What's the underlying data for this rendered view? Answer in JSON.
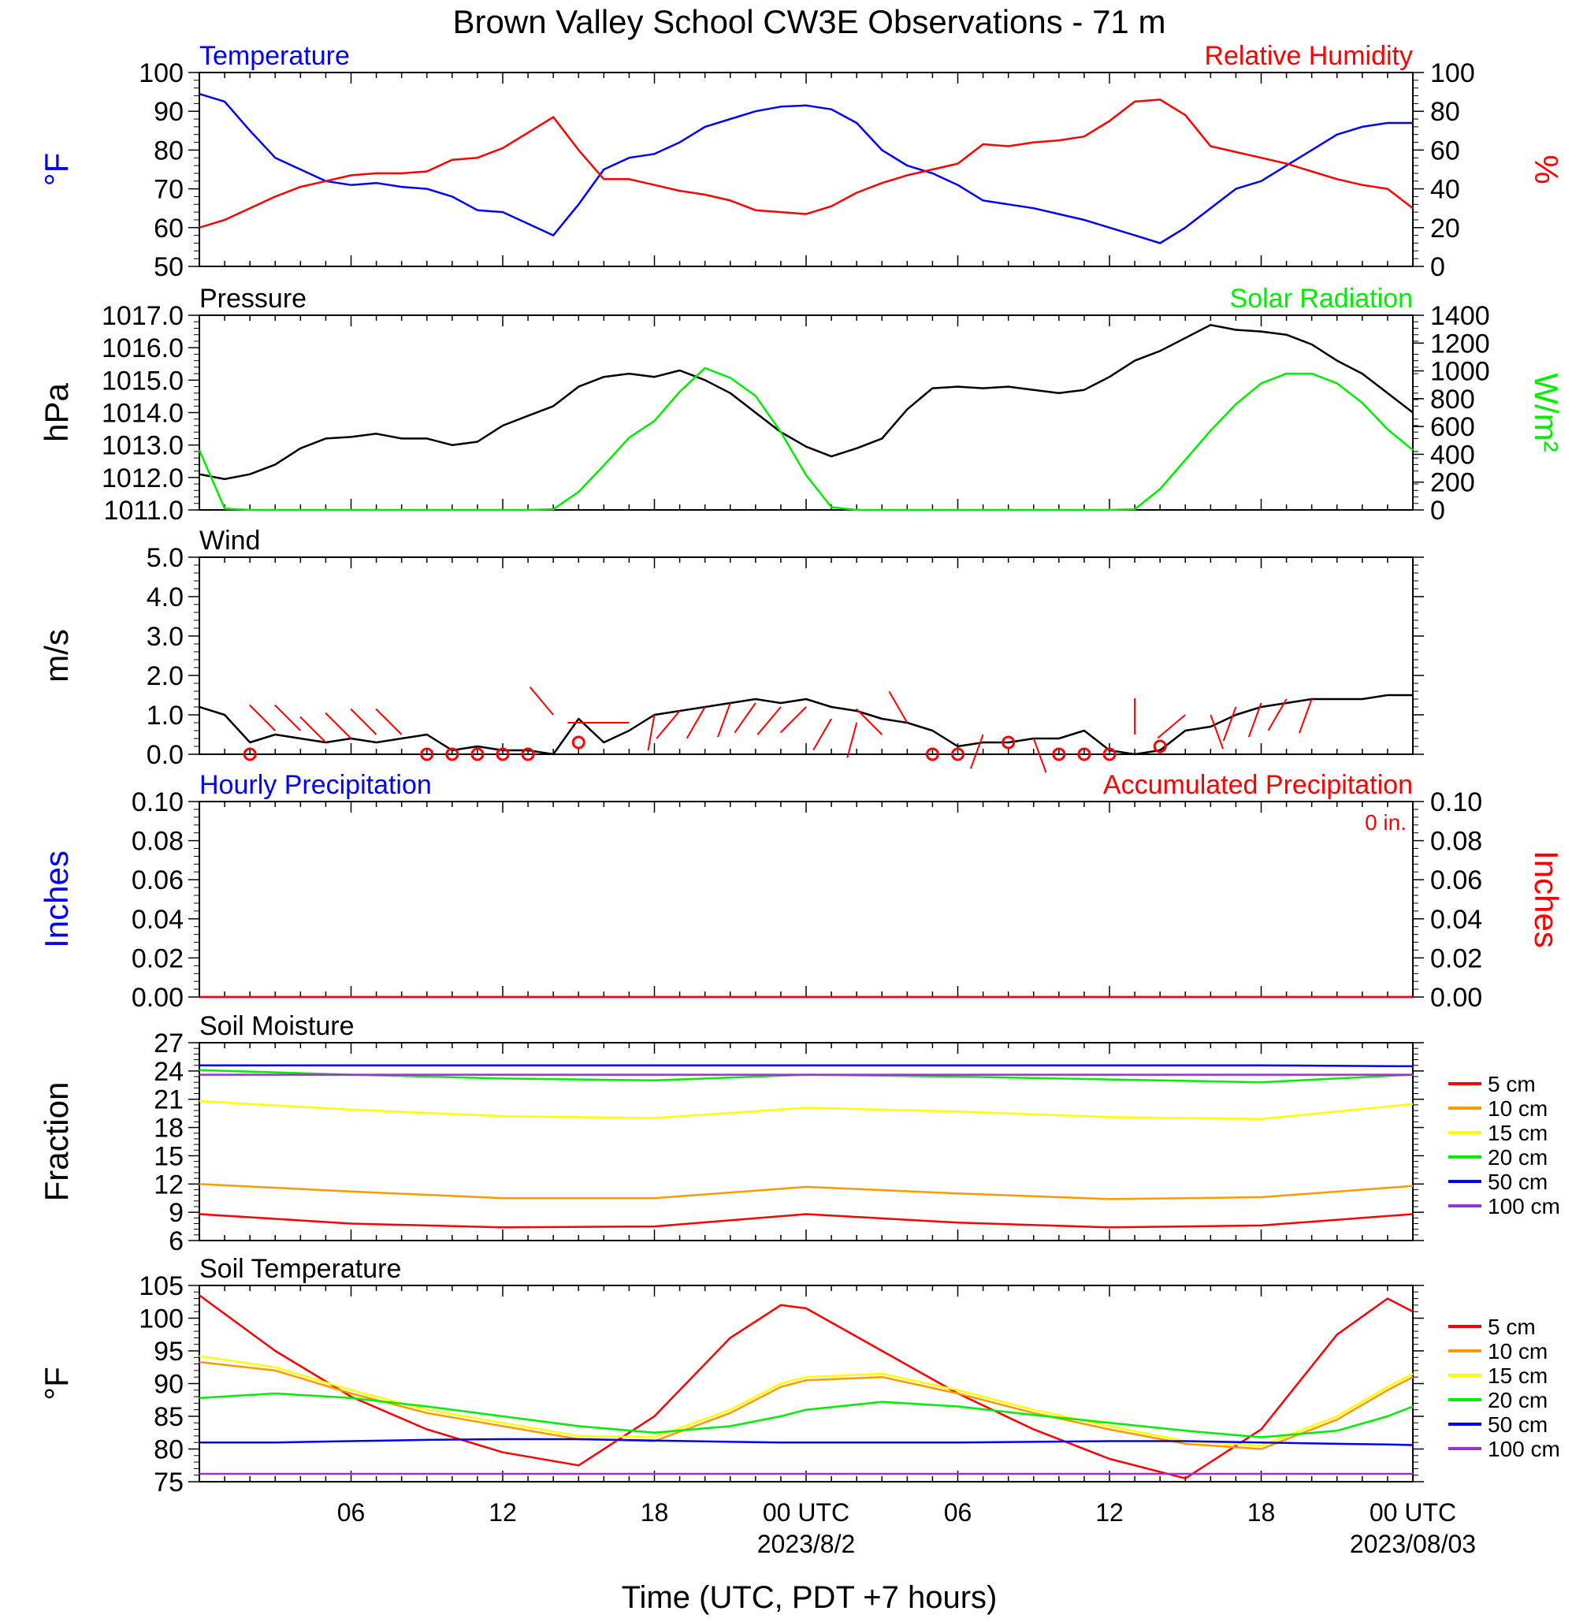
{
  "title": "Brown Valley School CW3E Observations - 71 m",
  "xaxis": {
    "label": "Time (UTC, PDT +7 hours)",
    "ticks": [
      {
        "t": 6,
        "label": "06"
      },
      {
        "t": 12,
        "label": "12"
      },
      {
        "t": 18,
        "label": "18"
      },
      {
        "t": 24,
        "label": "00 UTC"
      },
      {
        "t": 30,
        "label": "06"
      },
      {
        "t": 36,
        "label": "12"
      },
      {
        "t": 42,
        "label": "18"
      },
      {
        "t": 48,
        "label": "00 UTC"
      }
    ],
    "dates": [
      {
        "t": 24,
        "label": "2023/8/2"
      },
      {
        "t": 48,
        "label": "2023/08/03"
      }
    ]
  },
  "legend": {
    "depths": [
      "5 cm",
      "10 cm",
      "15 cm",
      "20 cm",
      "50 cm",
      "100 cm"
    ],
    "colors": [
      "#ff0000",
      "#ff9900",
      "#ffff00",
      "#00ee00",
      "#0000ff",
      "#9933cc"
    ]
  },
  "chart_data": [
    {
      "type": "line",
      "left_title": "Temperature",
      "right_title": "Relative Humidity",
      "ylabel_left": "°F",
      "ylabel_right": "%",
      "ylim_left": [
        50,
        100
      ],
      "ylim_right": [
        0,
        100
      ],
      "yticks_left": [
        "100",
        "90",
        "80",
        "70",
        "60",
        "50"
      ],
      "yticks_right": [
        "100",
        "80",
        "60",
        "40",
        "20",
        "0"
      ],
      "x": [
        0,
        1,
        2,
        3,
        4,
        5,
        6,
        7,
        8,
        9,
        10,
        11,
        12,
        13,
        14,
        15,
        16,
        17,
        18,
        19,
        20,
        21,
        22,
        23,
        24,
        25,
        26,
        27,
        28,
        29,
        30,
        31,
        32,
        33,
        34,
        35,
        36,
        37,
        38,
        39,
        40,
        41,
        42,
        43,
        44,
        45,
        46,
        47,
        48
      ],
      "series": [
        {
          "name": "Temperature",
          "axis": "left",
          "color": "#0000ff",
          "values": [
            94.5,
            92.5,
            85,
            78,
            75,
            72,
            71,
            71.5,
            70.5,
            70,
            68,
            64.5,
            64,
            61,
            58,
            66,
            75,
            78,
            79,
            82,
            86,
            88,
            90,
            91.2,
            91.5,
            90.5,
            87,
            80,
            76,
            74,
            71,
            67,
            66,
            65,
            63.5,
            62,
            60,
            58,
            56,
            60,
            65,
            70,
            72,
            76,
            80,
            84,
            86,
            87,
            87
          ]
        },
        {
          "name": "Relative Humidity",
          "axis": "right",
          "color": "#ff0000",
          "values": [
            20,
            24,
            30,
            36,
            41,
            44,
            47,
            48,
            48,
            49,
            55,
            56,
            61,
            69,
            77,
            60,
            45,
            45,
            42,
            39,
            37,
            34,
            29,
            28,
            27,
            31,
            38,
            43,
            47,
            50,
            53,
            63,
            62,
            64,
            65,
            67,
            75,
            85,
            86,
            78,
            62,
            59,
            56,
            53,
            49,
            45,
            42,
            40,
            30
          ]
        }
      ]
    },
    {
      "type": "line",
      "left_title": "Pressure",
      "right_title": "Solar Radiation",
      "ylabel_left": "hPa",
      "ylabel_right": "W/m²",
      "ylim_left": [
        1011,
        1017
      ],
      "ylim_right": [
        0,
        1400
      ],
      "yticks_left": [
        "1017.0",
        "1016.0",
        "1015.0",
        "1014.0",
        "1013.0",
        "1012.0",
        "1011.0"
      ],
      "yticks_right": [
        "1400",
        "1200",
        "1000",
        "800",
        "600",
        "400",
        "200",
        "0"
      ],
      "x": [
        0,
        1,
        2,
        3,
        4,
        5,
        6,
        7,
        8,
        9,
        10,
        11,
        12,
        13,
        14,
        15,
        16,
        17,
        18,
        19,
        20,
        21,
        22,
        23,
        24,
        25,
        26,
        27,
        28,
        29,
        30,
        31,
        32,
        33,
        34,
        35,
        36,
        37,
        38,
        39,
        40,
        41,
        42,
        43,
        44,
        45,
        46,
        47,
        48
      ],
      "series": [
        {
          "name": "Pressure",
          "axis": "left",
          "color": "#000000",
          "values": [
            1012.1,
            1011.95,
            1012.1,
            1012.4,
            1012.9,
            1013.2,
            1013.25,
            1013.35,
            1013.2,
            1013.2,
            1013.0,
            1013.1,
            1013.6,
            1013.9,
            1014.2,
            1014.8,
            1015.1,
            1015.2,
            1015.1,
            1015.3,
            1015.0,
            1014.6,
            1014.0,
            1013.4,
            1012.95,
            1012.65,
            1012.9,
            1013.2,
            1014.1,
            1014.75,
            1014.8,
            1014.75,
            1014.8,
            1014.7,
            1014.6,
            1014.7,
            1015.1,
            1015.6,
            1015.9,
            1016.3,
            1016.7,
            1016.55,
            1016.5,
            1016.4,
            1016.1,
            1015.6,
            1015.2,
            1014.6,
            1014.0
          ]
        },
        {
          "name": "Solar Radiation",
          "axis": "right",
          "color": "#00ee00",
          "values": [
            430,
            10,
            0,
            0,
            0,
            0,
            0,
            0,
            0,
            0,
            0,
            0,
            0,
            0,
            5,
            130,
            320,
            520,
            640,
            850,
            1020,
            950,
            820,
            560,
            250,
            20,
            0,
            0,
            0,
            0,
            0,
            0,
            0,
            0,
            0,
            0,
            0,
            5,
            150,
            360,
            570,
            760,
            910,
            980,
            980,
            910,
            770,
            580,
            430
          ]
        }
      ]
    },
    {
      "type": "line",
      "left_title": "Wind",
      "ylabel_left": "m/s",
      "ylim_left": [
        0,
        5
      ],
      "yticks_left": [
        "5.0",
        "4.0",
        "3.0",
        "2.0",
        "1.0",
        "0.0"
      ],
      "x": [
        0,
        1,
        2,
        3,
        4,
        5,
        6,
        7,
        8,
        9,
        10,
        11,
        12,
        13,
        14,
        15,
        16,
        17,
        18,
        19,
        20,
        21,
        22,
        23,
        24,
        25,
        26,
        27,
        28,
        29,
        30,
        31,
        32,
        33,
        34,
        35,
        36,
        37,
        38,
        39,
        40,
        41,
        42,
        43,
        44,
        45,
        46,
        47,
        48
      ],
      "series": [
        {
          "name": "Wind speed",
          "axis": "left",
          "color": "#000000",
          "values": [
            1.2,
            1.0,
            0.3,
            0.5,
            0.4,
            0.3,
            0.4,
            0.3,
            0.4,
            0.5,
            0.1,
            0.2,
            0.1,
            0.1,
            0.0,
            0.9,
            0.3,
            0.6,
            1.0,
            1.1,
            1.2,
            1.3,
            1.4,
            1.3,
            1.4,
            1.2,
            1.1,
            0.9,
            0.8,
            0.6,
            0.2,
            0.3,
            0.3,
            0.4,
            0.4,
            0.6,
            0.1,
            0.0,
            0.1,
            0.6,
            0.7,
            1.0,
            1.2,
            1.3,
            1.4,
            1.4,
            1.4,
            1.5,
            1.5
          ]
        }
      ]
    },
    {
      "type": "line",
      "left_title": "Hourly Precipitation",
      "right_title": "Accumulated Precipitation",
      "annotation": "0 in.",
      "ylabel_left": "Inches",
      "ylabel_right": "Inches",
      "ylim_left": [
        0,
        0.1
      ],
      "ylim_right": [
        0,
        0.1
      ],
      "yticks_left": [
        "0.10",
        "0.08",
        "0.06",
        "0.04",
        "0.02",
        "0.00"
      ],
      "yticks_right": [
        "0.10",
        "0.08",
        "0.06",
        "0.04",
        "0.02",
        "0.00"
      ],
      "x": [
        0,
        48
      ],
      "series": [
        {
          "name": "Hourly Precipitation",
          "axis": "left",
          "color": "#0000ff",
          "values": [
            0,
            0
          ]
        },
        {
          "name": "Accumulated Precipitation",
          "axis": "right",
          "color": "#ff0000",
          "values": [
            0,
            0
          ]
        }
      ]
    },
    {
      "type": "line",
      "left_title": "Soil Moisture",
      "ylabel_left": "Fraction",
      "ylim_left": [
        6,
        27
      ],
      "yticks_left": [
        "27",
        "24",
        "21",
        "18",
        "15",
        "12",
        "9",
        "6"
      ],
      "x": [
        0,
        6,
        12,
        18,
        24,
        30,
        36,
        42,
        48
      ],
      "series": [
        {
          "name": "5 cm",
          "axis": "left",
          "color": "#ff0000",
          "values": [
            8.8,
            7.8,
            7.4,
            7.5,
            8.8,
            7.9,
            7.4,
            7.6,
            8.8
          ]
        },
        {
          "name": "10 cm",
          "axis": "left",
          "color": "#ff9900",
          "values": [
            12.0,
            11.2,
            10.5,
            10.5,
            11.7,
            11.0,
            10.4,
            10.6,
            11.8
          ]
        },
        {
          "name": "15 cm",
          "axis": "left",
          "color": "#ffff00",
          "values": [
            20.8,
            19.9,
            19.2,
            19.0,
            20.1,
            19.7,
            19.1,
            18.9,
            20.5
          ]
        },
        {
          "name": "20 cm",
          "axis": "left",
          "color": "#00ee00",
          "values": [
            24.1,
            23.6,
            23.2,
            23.0,
            23.6,
            23.4,
            23.1,
            22.8,
            23.6
          ]
        },
        {
          "name": "50 cm",
          "axis": "left",
          "color": "#0000ff",
          "values": [
            24.6,
            24.6,
            24.6,
            24.6,
            24.6,
            24.6,
            24.6,
            24.6,
            24.5
          ]
        },
        {
          "name": "100 cm",
          "axis": "left",
          "color": "#9933cc",
          "values": [
            23.6,
            23.6,
            23.6,
            23.6,
            23.6,
            23.6,
            23.6,
            23.6,
            23.6
          ]
        }
      ]
    },
    {
      "type": "line",
      "left_title": "Soil Temperature",
      "ylabel_left": "°F",
      "ylim_left": [
        75,
        105
      ],
      "yticks_left": [
        "105",
        "100",
        "95",
        "90",
        "85",
        "80",
        "75"
      ],
      "x": [
        0,
        3,
        6,
        9,
        12,
        15,
        18,
        21,
        23,
        24,
        27,
        30,
        33,
        36,
        39,
        42,
        45,
        47,
        48
      ],
      "series": [
        {
          "name": "5 cm",
          "axis": "left",
          "color": "#ff0000",
          "values": [
            103.5,
            95,
            88,
            83,
            79.5,
            77.5,
            85,
            97,
            102,
            101.5,
            95,
            88.5,
            83,
            78.5,
            75.5,
            83,
            97.5,
            103,
            101
          ]
        },
        {
          "name": "10 cm",
          "axis": "left",
          "color": "#ff9900",
          "values": [
            93.3,
            92,
            88.5,
            85.5,
            83.5,
            81.5,
            81.2,
            85.5,
            89.5,
            90.5,
            91,
            88.5,
            85.5,
            83,
            80.8,
            80,
            84.5,
            89,
            91
          ]
        },
        {
          "name": "15 cm",
          "axis": "left",
          "color": "#ffff00",
          "values": [
            94.2,
            92.5,
            89,
            86,
            84,
            82,
            81.8,
            86,
            90,
            91,
            91.5,
            89,
            86,
            83.5,
            81.2,
            80.5,
            85,
            89.5,
            91.5
          ]
        },
        {
          "name": "20 cm",
          "axis": "left",
          "color": "#00ee00",
          "values": [
            87.8,
            88.5,
            87.8,
            86.5,
            85,
            83.5,
            82.5,
            83.5,
            85,
            86,
            87.2,
            86.5,
            85.2,
            84,
            82.8,
            81.8,
            82.8,
            85,
            86.5
          ]
        },
        {
          "name": "50 cm",
          "axis": "left",
          "color": "#0000ff",
          "values": [
            81,
            81,
            81.2,
            81.4,
            81.5,
            81.5,
            81.3,
            81.1,
            81,
            81,
            81,
            81,
            81.1,
            81.2,
            81.2,
            81,
            80.8,
            80.7,
            80.6
          ]
        },
        {
          "name": "100 cm",
          "axis": "left",
          "color": "#9933cc",
          "values": [
            76.2,
            76.2,
            76.2,
            76.2,
            76.2,
            76.2,
            76.2,
            76.2,
            76.2,
            76.2,
            76.2,
            76.2,
            76.2,
            76.2,
            76.2,
            76.2,
            76.2,
            76.2,
            76.2
          ]
        }
      ]
    }
  ],
  "wind_barbs": [
    {
      "t": 2,
      "speed": 0.0,
      "dir": 315
    },
    {
      "t": 3,
      "speed": 0.6,
      "dir": 315
    },
    {
      "t": 4,
      "speed": 0.6,
      "dir": 315
    },
    {
      "t": 5,
      "speed": 0.3,
      "dir": 315
    },
    {
      "t": 6,
      "speed": 0.4,
      "dir": 315
    },
    {
      "t": 7,
      "speed": 0.5,
      "dir": 315
    },
    {
      "t": 8,
      "speed": 0.5,
      "dir": 315
    },
    {
      "t": 9,
      "speed": 0.0,
      "dir": 0
    },
    {
      "t": 10,
      "speed": 0.0,
      "dir": 0
    },
    {
      "t": 11,
      "speed": 0.0,
      "dir": 0
    },
    {
      "t": 12,
      "speed": 0.0,
      "dir": 0
    },
    {
      "t": 13,
      "speed": 0.0,
      "dir": 0
    },
    {
      "t": 14,
      "speed": 1.0,
      "dir": 320
    },
    {
      "t": 15,
      "speed": 0.3,
      "dir": 0
    },
    {
      "t": 16,
      "speed": 0.8,
      "dir": 270
    },
    {
      "t": 17,
      "speed": 0.8,
      "dir": 270
    },
    {
      "t": 18,
      "speed": 1.0,
      "dir": 190
    },
    {
      "t": 19,
      "speed": 1.1,
      "dir": 220
    },
    {
      "t": 20,
      "speed": 1.2,
      "dir": 210
    },
    {
      "t": 21,
      "speed": 1.3,
      "dir": 200
    },
    {
      "t": 22,
      "speed": 1.3,
      "dir": 215
    },
    {
      "t": 23,
      "speed": 1.2,
      "dir": 220
    },
    {
      "t": 24,
      "speed": 1.2,
      "dir": 225
    },
    {
      "t": 25,
      "speed": 0.9,
      "dir": 210
    },
    {
      "t": 26,
      "speed": 0.8,
      "dir": 195
    },
    {
      "t": 27,
      "speed": 0.5,
      "dir": 315
    },
    {
      "t": 28,
      "speed": 0.8,
      "dir": 330
    },
    {
      "t": 29,
      "speed": 0.0,
      "dir": 0
    },
    {
      "t": 30,
      "speed": 0.0,
      "dir": 0
    },
    {
      "t": 31,
      "speed": 0.5,
      "dir": 200
    },
    {
      "t": 32,
      "speed": 0.3,
      "dir": 0
    },
    {
      "t": 33,
      "speed": 0.4,
      "dir": 160
    },
    {
      "t": 34,
      "speed": 0.0,
      "dir": 0
    },
    {
      "t": 35,
      "speed": 0.0,
      "dir": 0
    },
    {
      "t": 36,
      "speed": 0.0,
      "dir": 0
    },
    {
      "t": 37,
      "speed": 0.5,
      "dir": 0
    },
    {
      "t": 38,
      "speed": 0.2,
      "dir": 0
    },
    {
      "t": 39,
      "speed": 1.0,
      "dir": 230
    },
    {
      "t": 40,
      "speed": 1.0,
      "dir": 160
    },
    {
      "t": 41,
      "speed": 1.2,
      "dir": 200
    },
    {
      "t": 42,
      "speed": 1.3,
      "dir": 200
    },
    {
      "t": 43,
      "speed": 1.4,
      "dir": 210
    },
    {
      "t": 44,
      "speed": 1.4,
      "dir": 200
    }
  ]
}
